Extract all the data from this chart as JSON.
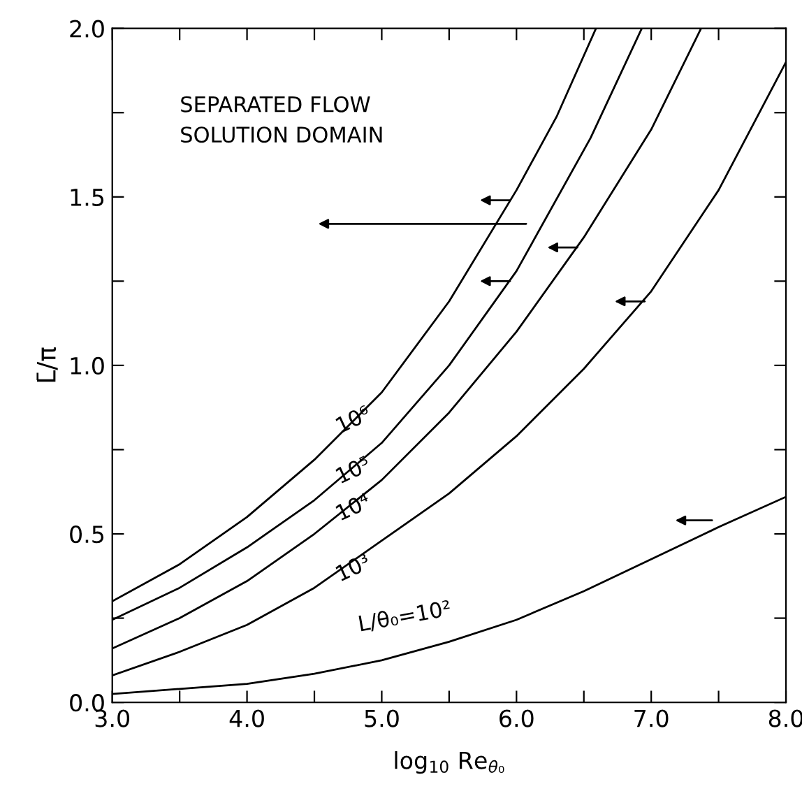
{
  "chart_data": {
    "type": "line",
    "xlabel": "log$_{10}$ Re$_{θ₀}$",
    "ylabel": "L̄/π",
    "xlim": [
      3.0,
      8.0
    ],
    "ylim": [
      0.0,
      2.0
    ],
    "xticks": [
      {
        "value": 3.0,
        "label": "3.0"
      },
      {
        "value": 3.5,
        "label": null
      },
      {
        "value": 4.0,
        "label": "4.0"
      },
      {
        "value": 4.5,
        "label": null
      },
      {
        "value": 5.0,
        "label": "5.0"
      },
      {
        "value": 5.5,
        "label": null
      },
      {
        "value": 6.0,
        "label": "6.0"
      },
      {
        "value": 6.5,
        "label": null
      },
      {
        "value": 7.0,
        "label": "7.0"
      },
      {
        "value": 7.5,
        "label": null
      },
      {
        "value": 8.0,
        "label": "8.0"
      }
    ],
    "yticks": [
      {
        "value": 0.0,
        "label": "0.0"
      },
      {
        "value": 0.25,
        "label": null
      },
      {
        "value": 0.5,
        "label": "0.5"
      },
      {
        "value": 0.75,
        "label": null
      },
      {
        "value": 1.0,
        "label": "1.0"
      },
      {
        "value": 1.25,
        "label": null
      },
      {
        "value": 1.5,
        "label": "1.5"
      },
      {
        "value": 1.75,
        "label": null
      },
      {
        "value": 2.0,
        "label": "2.0"
      }
    ],
    "grid": false,
    "legend": false,
    "marker": "none",
    "line_style": "solid",
    "annotations": [
      "SEPARATED FLOW\nSOLUTION DOMAIN"
    ],
    "series": [
      {
        "name": "10⁶",
        "color": "#000000",
        "x": [
          3.0,
          3.5,
          4.0,
          4.5,
          5.0,
          5.5,
          6.0,
          6.3,
          6.59
        ],
        "values": [
          0.3,
          0.41,
          0.55,
          0.72,
          0.92,
          1.19,
          1.52,
          1.74,
          2.0
        ]
      },
      {
        "name": "10⁵",
        "color": "#000000",
        "x": [
          3.0,
          3.5,
          4.0,
          4.5,
          5.0,
          5.5,
          6.0,
          6.55,
          6.93
        ],
        "values": [
          0.245,
          0.34,
          0.46,
          0.6,
          0.77,
          1.0,
          1.28,
          1.675,
          2.0
        ]
      },
      {
        "name": "10⁴",
        "color": "#000000",
        "x": [
          3.0,
          3.5,
          4.0,
          4.5,
          5.0,
          5.5,
          6.0,
          6.5,
          7.0,
          7.37
        ],
        "values": [
          0.16,
          0.25,
          0.36,
          0.5,
          0.66,
          0.86,
          1.1,
          1.38,
          1.7,
          2.0
        ]
      },
      {
        "name": "10³",
        "color": "#000000",
        "x": [
          3.0,
          3.5,
          4.0,
          4.5,
          5.0,
          5.5,
          6.0,
          6.5,
          7.0,
          7.5,
          8.0
        ],
        "values": [
          0.08,
          0.15,
          0.23,
          0.34,
          0.48,
          0.62,
          0.79,
          0.99,
          1.22,
          1.52,
          1.9
        ]
      },
      {
        "name": "L/θ₀=10²",
        "color": "#000000",
        "x": [
          3.0,
          3.5,
          4.0,
          4.5,
          5.0,
          5.5,
          6.0,
          6.5,
          7.0,
          7.5,
          8.0
        ],
        "values": [
          0.025,
          0.04,
          0.055,
          0.085,
          0.125,
          0.18,
          0.245,
          0.33,
          0.425,
          0.52,
          0.61
        ]
      }
    ]
  }
}
